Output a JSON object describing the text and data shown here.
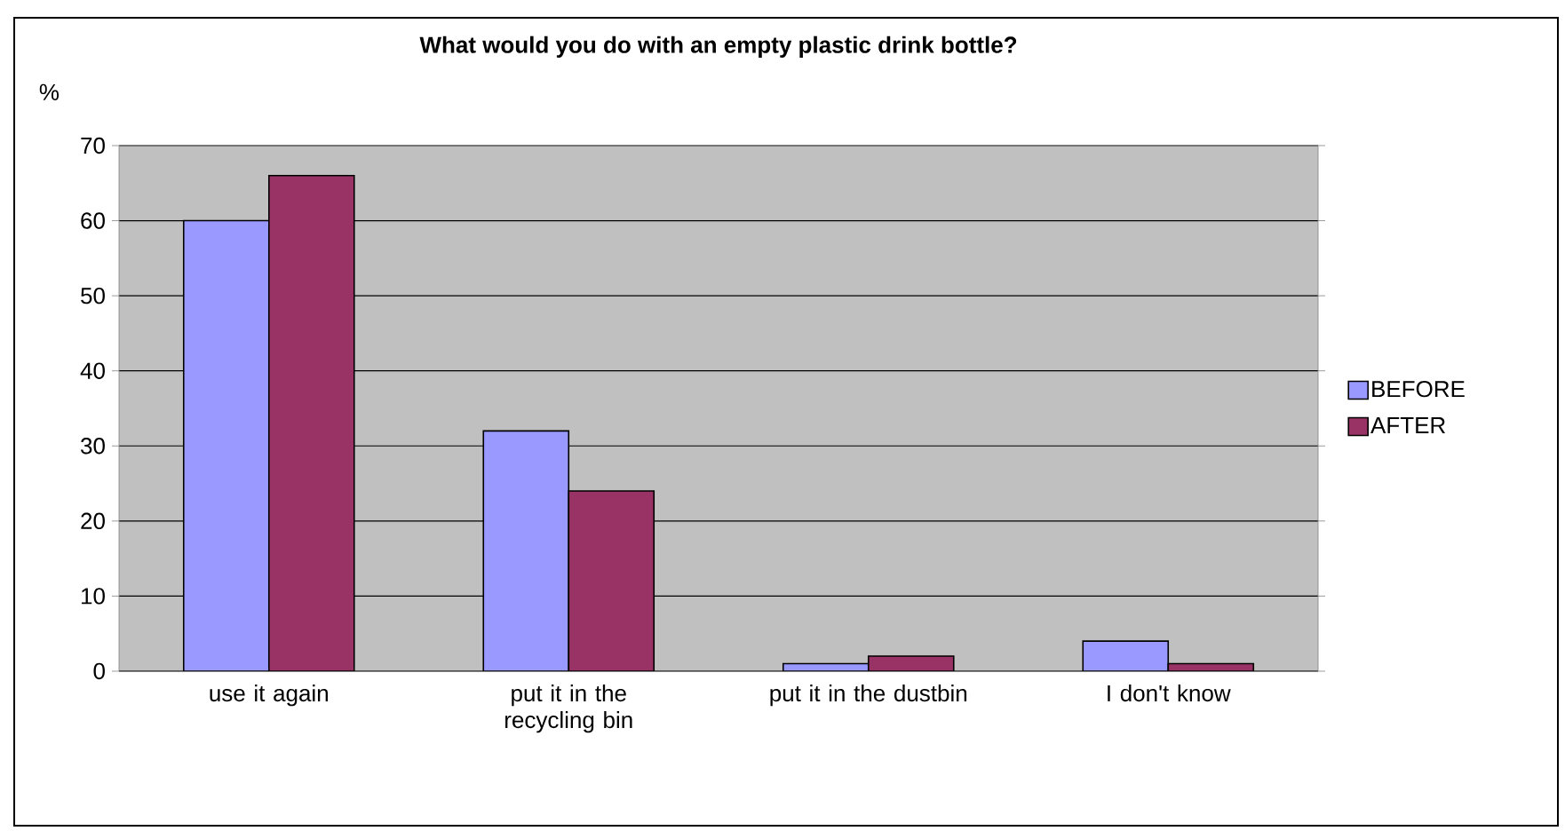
{
  "chart_data": {
    "type": "bar",
    "title": "What would you do with an empty plastic drink bottle?",
    "ylabel": "%",
    "categories": [
      "use it again",
      "put it in the recycling bin",
      "put it in the dustbin",
      "I don't know"
    ],
    "series": [
      {
        "name": "BEFORE",
        "color": "#9999ff",
        "values": [
          60,
          32,
          1,
          4
        ]
      },
      {
        "name": "AFTER",
        "color": "#993366",
        "values": [
          66,
          24,
          2,
          1
        ]
      }
    ],
    "ylim": [
      0,
      70
    ],
    "yticks": [
      0,
      10,
      20,
      30,
      40,
      50,
      60,
      70
    ],
    "grid": "y",
    "legend": "right"
  }
}
